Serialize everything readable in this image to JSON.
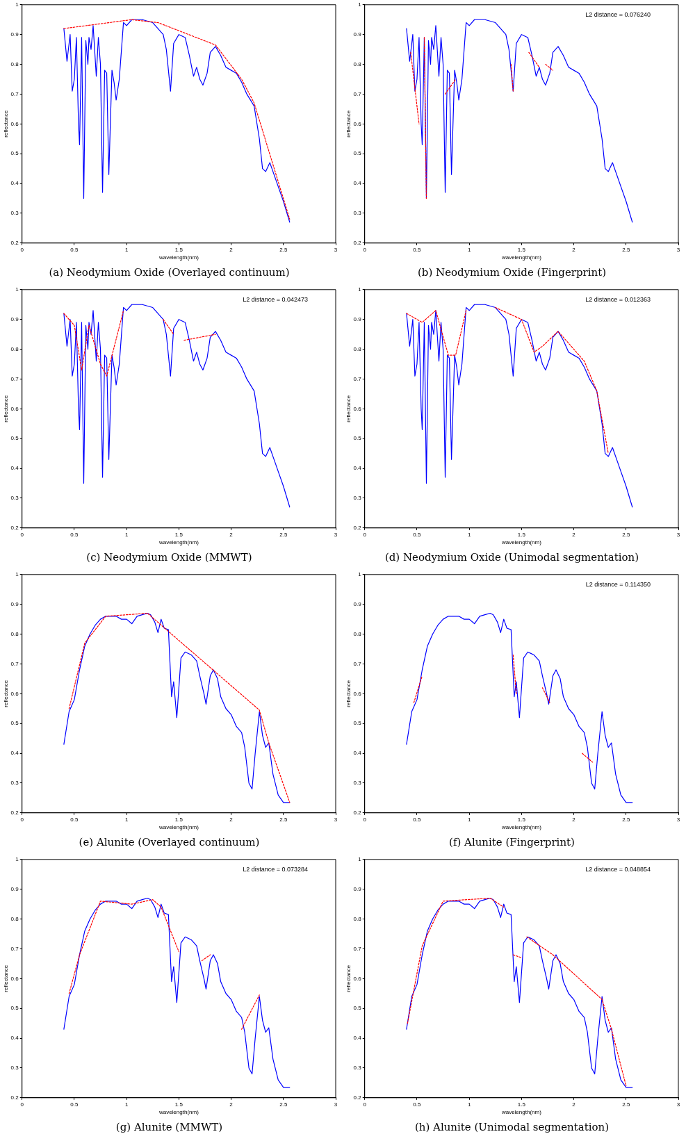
{
  "chart_data": [
    {
      "type": "line",
      "title": "(a) Neodymium Oxide (Overlayed continuum)",
      "xlabel": "wavelength(nm)",
      "ylabel": "reflectance",
      "xlim": [
        0,
        3
      ],
      "xticks": [
        0,
        0.5,
        1,
        1.5,
        2,
        2.5,
        3
      ],
      "ylim": [
        0.2,
        1
      ],
      "yticks": [
        0.2,
        0.3,
        0.4,
        0.5,
        0.6,
        0.7,
        0.8,
        0.9,
        1
      ],
      "marker": "none",
      "legend": false,
      "grid": false,
      "series": [
        {
          "color": "#0000ff",
          "line_style": "solid",
          "x": [
            0.4,
            0.43,
            0.46,
            0.48,
            0.5,
            0.52,
            0.54,
            0.55,
            0.57,
            0.59,
            0.61,
            0.63,
            0.64,
            0.66,
            0.68,
            0.71,
            0.73,
            0.75,
            0.77,
            0.79,
            0.81,
            0.83,
            0.86,
            0.88,
            0.9,
            0.93,
            0.97,
            1.0,
            1.05,
            1.15,
            1.25,
            1.3,
            1.35,
            1.38,
            1.42,
            1.45,
            1.5,
            1.56,
            1.6,
            1.64,
            1.67,
            1.7,
            1.73,
            1.77,
            1.8,
            1.85,
            1.9,
            1.95,
            2.0,
            2.05,
            2.1,
            2.15,
            2.22,
            2.27,
            2.3,
            2.33,
            2.37,
            2.4,
            2.45,
            2.5,
            2.56
          ],
          "values": [
            0.92,
            0.81,
            0.9,
            0.71,
            0.75,
            0.89,
            0.6,
            0.53,
            0.89,
            0.35,
            0.88,
            0.8,
            0.89,
            0.85,
            0.93,
            0.76,
            0.89,
            0.8,
            0.37,
            0.78,
            0.77,
            0.43,
            0.78,
            0.74,
            0.68,
            0.75,
            0.94,
            0.93,
            0.95,
            0.95,
            0.94,
            0.92,
            0.9,
            0.85,
            0.71,
            0.87,
            0.9,
            0.89,
            0.83,
            0.76,
            0.79,
            0.75,
            0.73,
            0.77,
            0.84,
            0.86,
            0.83,
            0.79,
            0.78,
            0.77,
            0.74,
            0.7,
            0.66,
            0.55,
            0.45,
            0.44,
            0.47,
            0.44,
            0.39,
            0.34,
            0.27
          ]
        },
        {
          "color": "#ff0000",
          "line_style": "dashed",
          "x": [
            0.4,
            1.05,
            1.3,
            1.85,
            2.1,
            2.22,
            2.56
          ],
          "values": [
            0.92,
            0.95,
            0.94,
            0.865,
            0.75,
            0.67,
            0.28
          ]
        }
      ]
    },
    {
      "type": "line",
      "title": "(b) Neodymium Oxide (Fingerprint)",
      "xlabel": "wavelength(nm)",
      "ylabel": "reflectance",
      "xlim": [
        0,
        3
      ],
      "xticks": [
        0,
        0.5,
        1,
        1.5,
        2,
        2.5,
        3
      ],
      "ylim": [
        0.2,
        1
      ],
      "yticks": [
        0.2,
        0.3,
        0.4,
        0.5,
        0.6,
        0.7,
        0.8,
        0.9,
        1
      ],
      "marker": "none",
      "legend": false,
      "grid": false,
      "annotations": [
        "L2 distance = 0.076240"
      ],
      "series": [
        {
          "color": "#0000ff",
          "line_style": "solid",
          "x": [
            0.4,
            0.43,
            0.46,
            0.48,
            0.5,
            0.52,
            0.54,
            0.55,
            0.57,
            0.59,
            0.61,
            0.63,
            0.64,
            0.66,
            0.68,
            0.71,
            0.73,
            0.75,
            0.77,
            0.79,
            0.81,
            0.83,
            0.86,
            0.88,
            0.9,
            0.93,
            0.97,
            1.0,
            1.05,
            1.15,
            1.25,
            1.3,
            1.35,
            1.38,
            1.42,
            1.45,
            1.5,
            1.56,
            1.6,
            1.64,
            1.67,
            1.7,
            1.73,
            1.77,
            1.8,
            1.85,
            1.9,
            1.95,
            2.0,
            2.05,
            2.1,
            2.15,
            2.22,
            2.27,
            2.3,
            2.33,
            2.37,
            2.4,
            2.45,
            2.5,
            2.56
          ],
          "values": [
            0.92,
            0.81,
            0.9,
            0.71,
            0.75,
            0.89,
            0.6,
            0.53,
            0.89,
            0.35,
            0.88,
            0.8,
            0.89,
            0.85,
            0.93,
            0.76,
            0.89,
            0.8,
            0.37,
            0.78,
            0.77,
            0.43,
            0.78,
            0.74,
            0.68,
            0.75,
            0.94,
            0.93,
            0.95,
            0.95,
            0.94,
            0.92,
            0.9,
            0.85,
            0.71,
            0.87,
            0.9,
            0.89,
            0.83,
            0.76,
            0.79,
            0.75,
            0.73,
            0.77,
            0.84,
            0.86,
            0.83,
            0.79,
            0.78,
            0.77,
            0.74,
            0.7,
            0.66,
            0.55,
            0.45,
            0.44,
            0.47,
            0.44,
            0.39,
            0.34,
            0.27
          ]
        },
        {
          "color": "#ff0000",
          "line_style": "dashed",
          "x": [
            0.44,
            0.52,
            0.53,
            0.57,
            0.59,
            0.6,
            0.77,
            0.87,
            0.88,
            1.4,
            1.42,
            1.43,
            1.57,
            1.67,
            1.68,
            1.73,
            1.8
          ],
          "values": [
            0.84,
            0.6,
            null,
            0.89,
            0.35,
            null,
            0.7,
            0.75,
            null,
            0.8,
            0.71,
            null,
            0.84,
            0.79,
            null,
            0.8,
            0.78
          ]
        }
      ]
    },
    {
      "type": "line",
      "title": "(c) Neodymium Oxide (MMWT)",
      "xlabel": "wavelength(nm)",
      "ylabel": "reflectance",
      "xlim": [
        0,
        3
      ],
      "xticks": [
        0,
        0.5,
        1,
        1.5,
        2,
        2.5,
        3
      ],
      "ylim": [
        0.2,
        1
      ],
      "yticks": [
        0.2,
        0.3,
        0.4,
        0.5,
        0.6,
        0.7,
        0.8,
        0.9,
        1
      ],
      "marker": "none",
      "legend": false,
      "grid": false,
      "annotations": [
        "L2 distance = 0.042473"
      ],
      "series": [
        {
          "color": "#0000ff",
          "line_style": "solid",
          "x": [
            0.4,
            0.43,
            0.46,
            0.48,
            0.5,
            0.52,
            0.54,
            0.55,
            0.57,
            0.59,
            0.61,
            0.63,
            0.64,
            0.66,
            0.68,
            0.71,
            0.73,
            0.75,
            0.77,
            0.79,
            0.81,
            0.83,
            0.86,
            0.88,
            0.9,
            0.93,
            0.97,
            1.0,
            1.05,
            1.15,
            1.25,
            1.3,
            1.35,
            1.38,
            1.42,
            1.45,
            1.5,
            1.56,
            1.6,
            1.64,
            1.67,
            1.7,
            1.73,
            1.77,
            1.8,
            1.85,
            1.9,
            1.95,
            2.0,
            2.05,
            2.1,
            2.15,
            2.22,
            2.27,
            2.3,
            2.33,
            2.37,
            2.4,
            2.45,
            2.5,
            2.56
          ],
          "values": [
            0.92,
            0.81,
            0.9,
            0.71,
            0.75,
            0.89,
            0.6,
            0.53,
            0.89,
            0.35,
            0.88,
            0.8,
            0.89,
            0.85,
            0.93,
            0.76,
            0.89,
            0.8,
            0.37,
            0.78,
            0.77,
            0.43,
            0.78,
            0.74,
            0.68,
            0.75,
            0.94,
            0.93,
            0.95,
            0.95,
            0.94,
            0.92,
            0.9,
            0.85,
            0.71,
            0.87,
            0.9,
            0.89,
            0.83,
            0.76,
            0.79,
            0.75,
            0.73,
            0.77,
            0.84,
            0.86,
            0.83,
            0.79,
            0.78,
            0.77,
            0.74,
            0.7,
            0.66,
            0.55,
            0.45,
            0.44,
            0.47,
            0.44,
            0.39,
            0.34,
            0.27
          ]
        },
        {
          "color": "#ff0000",
          "line_style": "dashed",
          "x": [
            0.4,
            0.5,
            0.57,
            0.64,
            0.75,
            0.81,
            0.97,
            1.0,
            1.35,
            1.45,
            1.5,
            1.55,
            1.85
          ],
          "values": [
            0.92,
            0.88,
            0.73,
            0.88,
            0.75,
            0.71,
            0.93,
            null,
            0.9,
            0.85,
            null,
            0.83,
            0.85
          ]
        }
      ]
    },
    {
      "type": "line",
      "title": "(d) Neodymium Oxide (Unimodal segmentation)",
      "xlabel": "wavelength(nm)",
      "ylabel": "reflectance",
      "xlim": [
        0,
        3
      ],
      "xticks": [
        0,
        0.5,
        1,
        1.5,
        2,
        2.5,
        3
      ],
      "ylim": [
        0.2,
        1
      ],
      "yticks": [
        0.2,
        0.3,
        0.4,
        0.5,
        0.6,
        0.7,
        0.8,
        0.9,
        1
      ],
      "marker": "none",
      "legend": false,
      "grid": false,
      "annotations": [
        "L2 distance = 0.012363"
      ],
      "series": [
        {
          "color": "#0000ff",
          "line_style": "solid",
          "x": [
            0.4,
            0.43,
            0.46,
            0.48,
            0.5,
            0.52,
            0.54,
            0.55,
            0.57,
            0.59,
            0.61,
            0.63,
            0.64,
            0.66,
            0.68,
            0.71,
            0.73,
            0.75,
            0.77,
            0.79,
            0.81,
            0.83,
            0.86,
            0.88,
            0.9,
            0.93,
            0.97,
            1.0,
            1.05,
            1.15,
            1.25,
            1.3,
            1.35,
            1.38,
            1.42,
            1.45,
            1.5,
            1.56,
            1.6,
            1.64,
            1.67,
            1.7,
            1.73,
            1.77,
            1.8,
            1.85,
            1.9,
            1.95,
            2.0,
            2.05,
            2.1,
            2.15,
            2.22,
            2.27,
            2.3,
            2.33,
            2.37,
            2.4,
            2.45,
            2.5,
            2.56
          ],
          "values": [
            0.92,
            0.81,
            0.9,
            0.71,
            0.75,
            0.89,
            0.6,
            0.53,
            0.89,
            0.35,
            0.88,
            0.8,
            0.89,
            0.85,
            0.93,
            0.76,
            0.89,
            0.8,
            0.37,
            0.78,
            0.77,
            0.43,
            0.78,
            0.74,
            0.68,
            0.75,
            0.94,
            0.93,
            0.95,
            0.95,
            0.94,
            0.92,
            0.9,
            0.85,
            0.71,
            0.87,
            0.9,
            0.89,
            0.83,
            0.76,
            0.79,
            0.75,
            0.73,
            0.77,
            0.84,
            0.86,
            0.83,
            0.79,
            0.78,
            0.77,
            0.74,
            0.7,
            0.66,
            0.55,
            0.45,
            0.44,
            0.47,
            0.44,
            0.39,
            0.34,
            0.27
          ]
        },
        {
          "color": "#ff0000",
          "line_style": "dashed",
          "x": [
            0.4,
            0.55,
            0.68,
            0.8,
            0.87,
            0.97,
            1.1,
            1.25,
            1.5,
            1.62,
            1.7,
            1.85,
            2.1,
            2.22,
            2.33
          ],
          "values": [
            0.92,
            0.89,
            0.93,
            0.78,
            0.78,
            0.93,
            null,
            0.94,
            0.9,
            0.79,
            0.81,
            0.86,
            0.76,
            0.66,
            0.45
          ]
        }
      ]
    },
    {
      "type": "line",
      "title": "(e) Alunite (Overlayed continuum)",
      "xlabel": "wavelength(nm)",
      "ylabel": "reflectance",
      "xlim": [
        0,
        3
      ],
      "xticks": [
        0,
        0.5,
        1,
        1.5,
        2,
        2.5,
        3
      ],
      "ylim": [
        0.2,
        1
      ],
      "yticks": [
        0.2,
        0.3,
        0.4,
        0.5,
        0.6,
        0.7,
        0.8,
        0.9,
        1
      ],
      "marker": "none",
      "legend": false,
      "grid": false,
      "series": [
        {
          "color": "#0000ff",
          "line_style": "solid",
          "x": [
            0.4,
            0.45,
            0.5,
            0.55,
            0.6,
            0.65,
            0.7,
            0.75,
            0.8,
            0.9,
            0.95,
            1.0,
            1.05,
            1.1,
            1.15,
            1.2,
            1.23,
            1.27,
            1.3,
            1.33,
            1.36,
            1.4,
            1.43,
            1.45,
            1.48,
            1.52,
            1.56,
            1.62,
            1.67,
            1.7,
            1.74,
            1.76,
            1.8,
            1.83,
            1.87,
            1.9,
            1.95,
            2.0,
            2.05,
            2.1,
            2.13,
            2.17,
            2.2,
            2.23,
            2.27,
            2.3,
            2.33,
            2.36,
            2.4,
            2.45,
            2.5,
            2.56
          ],
          "values": [
            0.43,
            0.54,
            0.58,
            0.68,
            0.76,
            0.8,
            0.83,
            0.85,
            0.86,
            0.86,
            0.85,
            0.85,
            0.835,
            0.86,
            0.865,
            0.87,
            0.865,
            0.84,
            0.805,
            0.85,
            0.82,
            0.815,
            0.59,
            0.64,
            0.52,
            0.72,
            0.74,
            0.73,
            0.71,
            0.66,
            0.6,
            0.565,
            0.66,
            0.68,
            0.65,
            0.59,
            0.55,
            0.53,
            0.49,
            0.47,
            0.42,
            0.3,
            0.28,
            0.4,
            0.54,
            0.46,
            0.42,
            0.435,
            0.33,
            0.26,
            0.235,
            0.235
          ]
        },
        {
          "color": "#ff0000",
          "line_style": "dashed",
          "x": [
            0.45,
            0.6,
            0.8,
            1.2,
            2.27,
            2.36,
            2.56
          ],
          "values": [
            0.55,
            0.77,
            0.86,
            0.87,
            0.545,
            0.435,
            0.235
          ]
        }
      ]
    },
    {
      "type": "line",
      "title": "(f) Alunite (Fingerprint)",
      "xlabel": "wavelength(nm)",
      "ylabel": "reflectance",
      "xlim": [
        0,
        3
      ],
      "xticks": [
        0,
        0.5,
        1,
        1.5,
        2,
        2.5,
        3
      ],
      "ylim": [
        0.2,
        1
      ],
      "yticks": [
        0.2,
        0.3,
        0.4,
        0.5,
        0.6,
        0.7,
        0.8,
        0.9,
        1
      ],
      "marker": "none",
      "legend": false,
      "grid": false,
      "annotations": [
        "L2 distance = 0.114350"
      ],
      "series": [
        {
          "color": "#0000ff",
          "line_style": "solid",
          "x": [
            0.4,
            0.45,
            0.5,
            0.55,
            0.6,
            0.65,
            0.7,
            0.75,
            0.8,
            0.9,
            0.95,
            1.0,
            1.05,
            1.1,
            1.15,
            1.2,
            1.23,
            1.27,
            1.3,
            1.33,
            1.36,
            1.4,
            1.43,
            1.45,
            1.48,
            1.52,
            1.56,
            1.62,
            1.67,
            1.7,
            1.74,
            1.76,
            1.8,
            1.83,
            1.87,
            1.9,
            1.95,
            2.0,
            2.05,
            2.1,
            2.13,
            2.17,
            2.2,
            2.23,
            2.27,
            2.3,
            2.33,
            2.36,
            2.4,
            2.45,
            2.5,
            2.56
          ],
          "values": [
            0.43,
            0.54,
            0.58,
            0.68,
            0.76,
            0.8,
            0.83,
            0.85,
            0.86,
            0.86,
            0.85,
            0.85,
            0.835,
            0.86,
            0.865,
            0.87,
            0.865,
            0.84,
            0.805,
            0.85,
            0.82,
            0.815,
            0.59,
            0.64,
            0.52,
            0.72,
            0.74,
            0.73,
            0.71,
            0.66,
            0.6,
            0.565,
            0.66,
            0.68,
            0.65,
            0.59,
            0.55,
            0.53,
            0.49,
            0.47,
            0.42,
            0.3,
            0.28,
            0.4,
            0.54,
            0.46,
            0.42,
            0.435,
            0.33,
            0.26,
            0.235,
            0.235
          ]
        },
        {
          "color": "#ff0000",
          "line_style": "dashed",
          "x": [
            0.47,
            0.55,
            0.6,
            1.42,
            1.45,
            1.5,
            1.7,
            1.77,
            1.9,
            2.08,
            2.18
          ],
          "values": [
            0.57,
            0.66,
            null,
            0.73,
            0.6,
            null,
            0.62,
            0.57,
            null,
            0.4,
            0.37
          ]
        }
      ]
    },
    {
      "type": "line",
      "title": "(g) Alunite (MMWT)",
      "xlabel": "wavelength(nm)",
      "ylabel": "reflectance",
      "xlim": [
        0,
        3
      ],
      "xticks": [
        0,
        0.5,
        1,
        1.5,
        2,
        2.5,
        3
      ],
      "ylim": [
        0.2,
        1
      ],
      "yticks": [
        0.2,
        0.3,
        0.4,
        0.5,
        0.6,
        0.7,
        0.8,
        0.9,
        1
      ],
      "marker": "none",
      "legend": false,
      "grid": false,
      "annotations": [
        "L2 distance = 0.073284"
      ],
      "series": [
        {
          "color": "#0000ff",
          "line_style": "solid",
          "x": [
            0.4,
            0.45,
            0.5,
            0.55,
            0.6,
            0.65,
            0.7,
            0.75,
            0.8,
            0.9,
            0.95,
            1.0,
            1.05,
            1.1,
            1.15,
            1.2,
            1.23,
            1.27,
            1.3,
            1.33,
            1.36,
            1.4,
            1.43,
            1.45,
            1.48,
            1.52,
            1.56,
            1.62,
            1.67,
            1.7,
            1.74,
            1.76,
            1.8,
            1.83,
            1.87,
            1.9,
            1.95,
            2.0,
            2.05,
            2.1,
            2.13,
            2.17,
            2.2,
            2.23,
            2.27,
            2.3,
            2.33,
            2.36,
            2.4,
            2.45,
            2.5,
            2.56
          ],
          "values": [
            0.43,
            0.54,
            0.58,
            0.68,
            0.76,
            0.8,
            0.83,
            0.85,
            0.86,
            0.86,
            0.85,
            0.85,
            0.835,
            0.86,
            0.865,
            0.87,
            0.865,
            0.84,
            0.805,
            0.85,
            0.82,
            0.815,
            0.59,
            0.64,
            0.52,
            0.72,
            0.74,
            0.73,
            0.71,
            0.66,
            0.6,
            0.565,
            0.66,
            0.68,
            0.65,
            0.59,
            0.55,
            0.53,
            0.49,
            0.47,
            0.42,
            0.3,
            0.28,
            0.4,
            0.54,
            0.46,
            0.42,
            0.435,
            0.33,
            0.26,
            0.235,
            0.235
          ]
        },
        {
          "color": "#ff0000",
          "line_style": "dashed",
          "x": [
            0.45,
            0.55,
            0.75,
            1.05,
            1.25,
            1.33,
            1.5,
            1.6,
            1.72,
            1.8,
            1.95,
            2.1,
            2.27
          ],
          "values": [
            0.55,
            0.68,
            0.86,
            0.85,
            0.865,
            0.84,
            0.69,
            null,
            0.66,
            0.68,
            null,
            0.43,
            0.545
          ]
        }
      ]
    },
    {
      "type": "line",
      "title": "(h) Alunite (Unimodal segmentation)",
      "xlabel": "wavelength(nm)",
      "ylabel": "reflectance",
      "xlim": [
        0,
        3
      ],
      "xticks": [
        0,
        0.5,
        1,
        1.5,
        2,
        2.5,
        3
      ],
      "ylim": [
        0.2,
        1
      ],
      "yticks": [
        0.2,
        0.3,
        0.4,
        0.5,
        0.6,
        0.7,
        0.8,
        0.9,
        1
      ],
      "marker": "none",
      "legend": false,
      "grid": false,
      "annotations": [
        "L2 distance = 0.048854"
      ],
      "series": [
        {
          "color": "#0000ff",
          "line_style": "solid",
          "x": [
            0.4,
            0.45,
            0.5,
            0.55,
            0.6,
            0.65,
            0.7,
            0.75,
            0.8,
            0.9,
            0.95,
            1.0,
            1.05,
            1.1,
            1.15,
            1.2,
            1.23,
            1.27,
            1.3,
            1.33,
            1.36,
            1.4,
            1.43,
            1.45,
            1.48,
            1.52,
            1.56,
            1.62,
            1.67,
            1.7,
            1.74,
            1.76,
            1.8,
            1.83,
            1.87,
            1.9,
            1.95,
            2.0,
            2.05,
            2.1,
            2.13,
            2.17,
            2.2,
            2.23,
            2.27,
            2.3,
            2.33,
            2.36,
            2.4,
            2.45,
            2.5,
            2.56
          ],
          "values": [
            0.43,
            0.54,
            0.58,
            0.68,
            0.76,
            0.8,
            0.83,
            0.85,
            0.86,
            0.86,
            0.85,
            0.85,
            0.835,
            0.86,
            0.865,
            0.87,
            0.865,
            0.84,
            0.805,
            0.85,
            0.82,
            0.815,
            0.59,
            0.64,
            0.52,
            0.72,
            0.74,
            0.73,
            0.71,
            0.66,
            0.6,
            0.565,
            0.66,
            0.68,
            0.65,
            0.59,
            0.55,
            0.53,
            0.49,
            0.47,
            0.42,
            0.3,
            0.28,
            0.4,
            0.54,
            0.46,
            0.42,
            0.435,
            0.33,
            0.26,
            0.235,
            0.235
          ]
        },
        {
          "color": "#ff0000",
          "line_style": "dashed",
          "x": [
            0.41,
            0.55,
            0.75,
            1.2,
            1.33,
            1.38,
            1.42,
            1.5,
            1.52,
            1.55,
            1.8,
            2.27,
            2.36,
            2.5
          ],
          "values": [
            0.45,
            0.71,
            0.86,
            0.87,
            0.84,
            null,
            0.68,
            0.67,
            null,
            0.74,
            0.68,
            0.53,
            0.43,
            0.24
          ]
        }
      ]
    }
  ]
}
